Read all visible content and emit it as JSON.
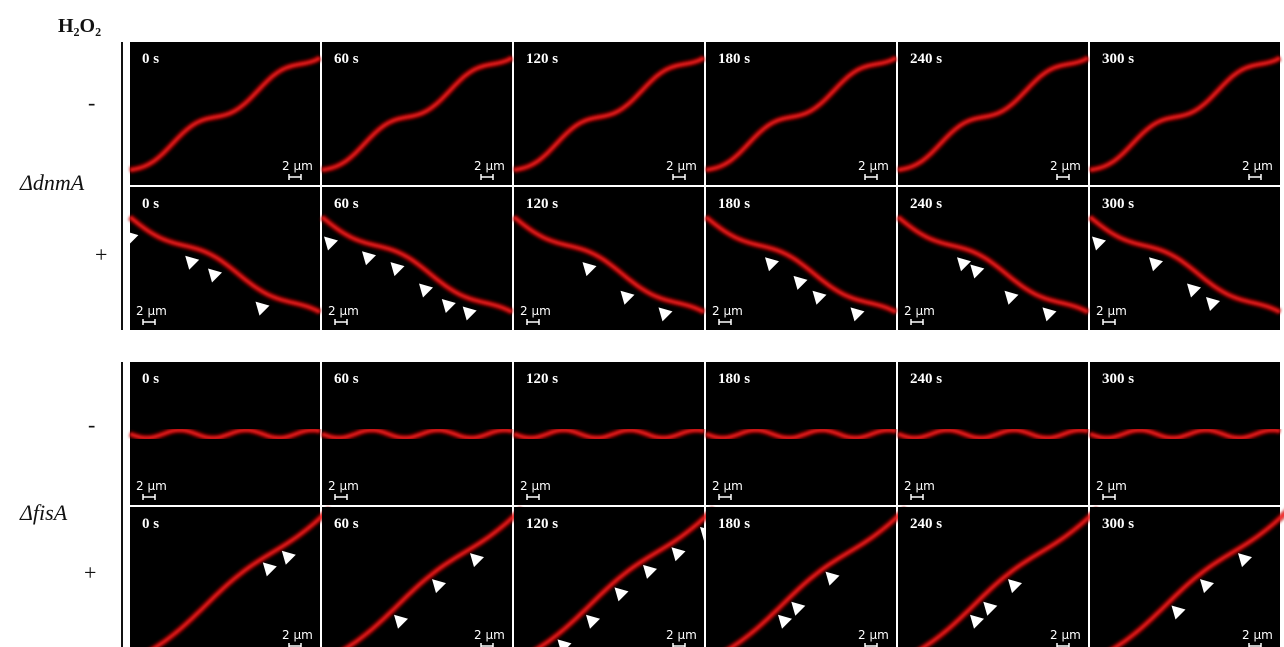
{
  "header": {
    "label": "H₂O₂"
  },
  "groups": [
    {
      "strain": "ΔdnmA",
      "rows": [
        {
          "treatment": "-",
          "panels": [
            {
              "time": "0 s",
              "scale": "2 µm"
            },
            {
              "time": "60 s",
              "scale": "2 µm"
            },
            {
              "time": "120 s",
              "scale": "2 µm"
            },
            {
              "time": "180 s",
              "scale": "2 µm"
            },
            {
              "time": "240 s",
              "scale": "2 µm"
            },
            {
              "time": "300 s",
              "scale": "2 µm"
            }
          ]
        },
        {
          "treatment": "+",
          "panels": [
            {
              "time": "0 s",
              "scale": "2 µm"
            },
            {
              "time": "60 s",
              "scale": "2 µm"
            },
            {
              "time": "120 s",
              "scale": "2 µm"
            },
            {
              "time": "180 s",
              "scale": "2 µm"
            },
            {
              "time": "240 s",
              "scale": "2 µm"
            },
            {
              "time": "300 s",
              "scale": "2 µm"
            }
          ]
        }
      ]
    },
    {
      "strain": "ΔfisA",
      "rows": [
        {
          "treatment": "-",
          "panels": [
            {
              "time": "0 s",
              "scale": "2 µm"
            },
            {
              "time": "60 s",
              "scale": "2 µm"
            },
            {
              "time": "120 s",
              "scale": "2 µm"
            },
            {
              "time": "180 s",
              "scale": "2 µm"
            },
            {
              "time": "240 s",
              "scale": "2 µm"
            },
            {
              "time": "300 s",
              "scale": "2 µm"
            }
          ]
        },
        {
          "treatment": "+",
          "panels": [
            {
              "time": "0 s",
              "scale": "2 µm"
            },
            {
              "time": "60 s",
              "scale": "2 µm"
            },
            {
              "time": "120 s",
              "scale": "2 µm"
            },
            {
              "time": "180 s",
              "scale": "2 µm"
            },
            {
              "time": "240 s",
              "scale": "2 µm"
            },
            {
              "time": "300 s",
              "scale": "2 µm"
            }
          ]
        }
      ]
    }
  ]
}
